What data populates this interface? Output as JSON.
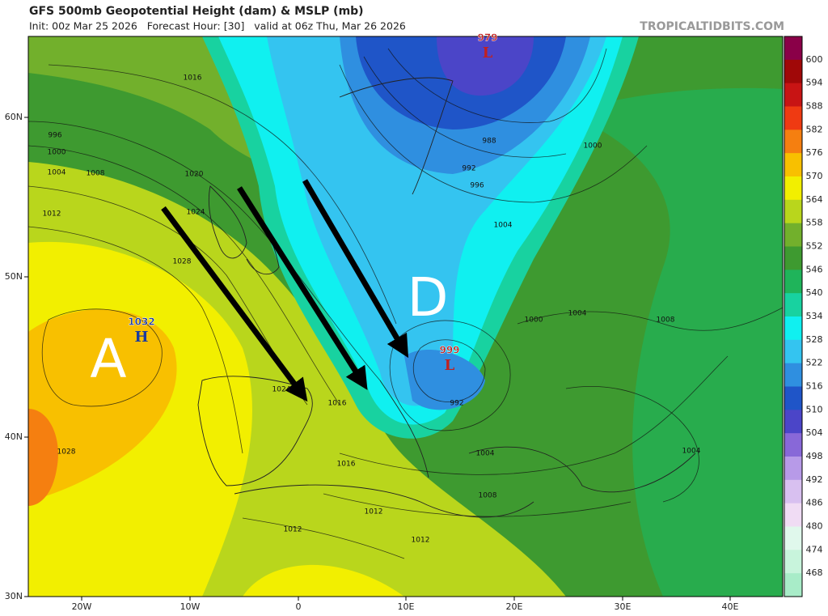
{
  "header": {
    "title": "GFS 500mb Geopotential Height (dam) & MSLP (mb)",
    "subtitle": "Init: 00z Mar 25 2026   Forecast Hour: [30]   valid at 06z Thu, Mar 26 2026",
    "credit": "TROPICALTIDBITS.COM"
  },
  "map": {
    "lat_labels": [
      "60N",
      "50N",
      "40N",
      "30N"
    ],
    "lon_labels": [
      "20W",
      "10W",
      "0",
      "10E",
      "20E",
      "30E",
      "40E"
    ],
    "centers": [
      {
        "label": "1032",
        "symbol": "H"
      },
      {
        "label": "979",
        "symbol": "L"
      },
      {
        "label": "999",
        "symbol": "L"
      }
    ],
    "annotations": [
      "A",
      "D"
    ],
    "isobar_labels": [
      "1016",
      "996",
      "1000",
      "1004",
      "1008",
      "1012",
      "1020",
      "1024",
      "1028",
      "988",
      "992",
      "996",
      "1004",
      "1000",
      "1004",
      "1008",
      "1004",
      "1004",
      "1008",
      "1012",
      "1012",
      "1012",
      "1016",
      "1016",
      "1024",
      "1028",
      "992",
      "1000"
    ]
  },
  "colorbar": {
    "levels": [
      600,
      594,
      588,
      582,
      576,
      570,
      564,
      558,
      552,
      546,
      540,
      534,
      528,
      522,
      516,
      510,
      504,
      498,
      492,
      486,
      480,
      474,
      468
    ],
    "colors": [
      "#8a0048",
      "#a00808",
      "#c81414",
      "#ef3a12",
      "#f57f10",
      "#f8c000",
      "#f2ef00",
      "#b9d61c",
      "#72b02c",
      "#3e9a30",
      "#1fb45a",
      "#18d2a0",
      "#10f0f0",
      "#34c4f0",
      "#2f8fe0",
      "#1f55c8",
      "#4b45c8",
      "#8868d8",
      "#b79ae8",
      "#d8c0f0",
      "#f0dcf4",
      "#e0f8ec",
      "#c8f4dc",
      "#a8ecc8"
    ]
  }
}
